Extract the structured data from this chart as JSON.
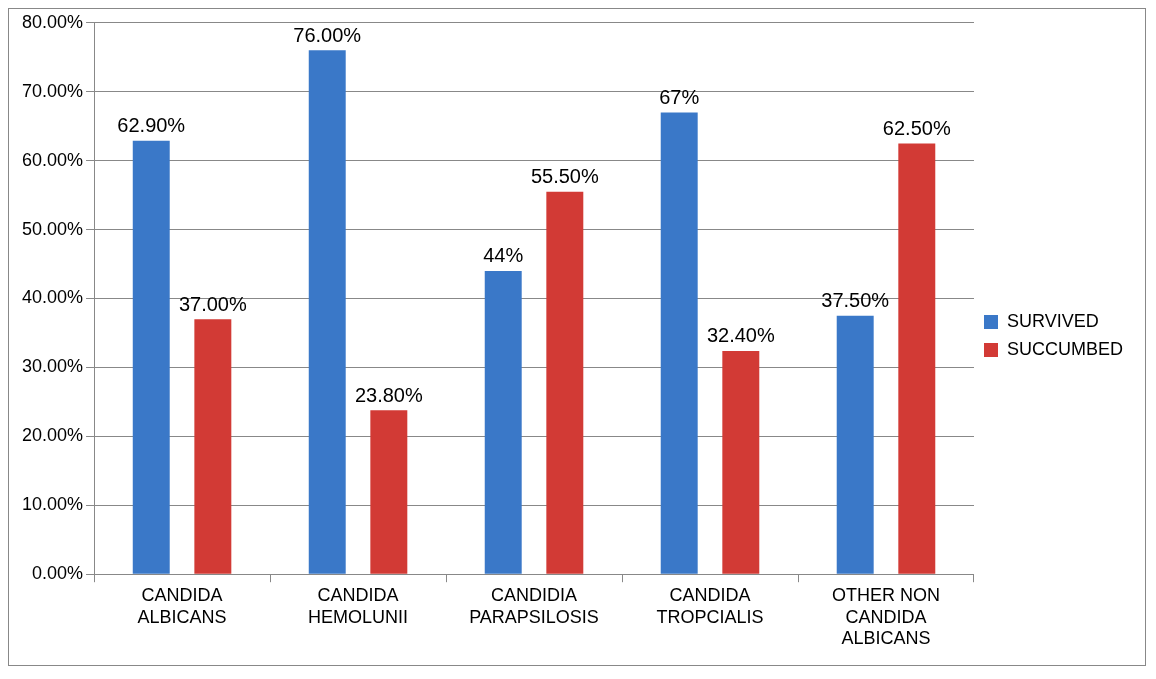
{
  "chart_data": {
    "type": "bar",
    "categories": [
      "CANDIDA ALBICANS",
      "CANDIDA HEMOLUNII",
      "CANDIDIA PARAPSILOSIS",
      "CANDIDA TROPCIALIS",
      "OTHER NON CANDIDA ALBICANS"
    ],
    "series": [
      {
        "name": "SURVIVED",
        "color": "#3a78c8",
        "values": [
          62.9,
          76,
          44,
          67,
          37.5
        ],
        "value_labels": [
          "62.90%",
          "76.00%",
          "44%",
          "67%",
          "37.50%"
        ]
      },
      {
        "name": "SUCCUMBED",
        "color": "#d23a35",
        "values": [
          37,
          23.8,
          55.5,
          32.4,
          62.5
        ],
        "value_labels": [
          "37.00%",
          "23.80%",
          "55.50%",
          "32.40%",
          "62.50%"
        ]
      }
    ],
    "ylim": [
      0,
      80
    ],
    "yticks": [
      {
        "value": 0,
        "label": "0.00%"
      },
      {
        "value": 10,
        "label": "10.00%"
      },
      {
        "value": 20,
        "label": "20.00%"
      },
      {
        "value": 30,
        "label": "30.00%"
      },
      {
        "value": 40,
        "label": "40.00%"
      },
      {
        "value": 50,
        "label": "50.00%"
      },
      {
        "value": 60,
        "label": "60.00%"
      },
      {
        "value": 70,
        "label": "70.00%"
      },
      {
        "value": 80,
        "label": "80.00%"
      }
    ],
    "grid": "y",
    "legend": "right"
  }
}
